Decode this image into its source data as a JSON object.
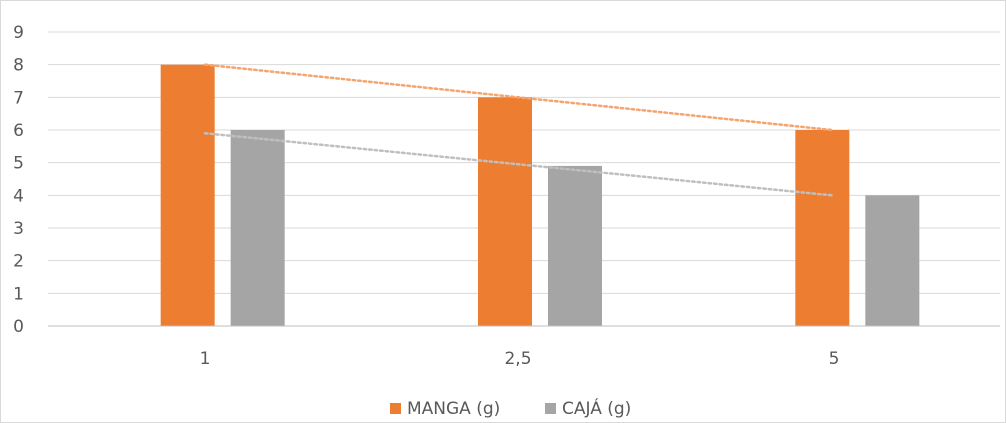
{
  "chart_data": {
    "type": "bar",
    "categories": [
      "1",
      "2,5",
      "5"
    ],
    "series": [
      {
        "name": "MANGA (g)",
        "values": [
          8,
          7,
          6
        ],
        "color": "#ED7D31"
      },
      {
        "name": "CAJÁ (g)",
        "values": [
          6,
          4.9,
          4
        ],
        "color": "#A5A5A5"
      }
    ],
    "trendlines": [
      {
        "series": "MANGA (g)",
        "style": "dotted",
        "start": 8,
        "end": 6
      },
      {
        "series": "CAJÁ (g)",
        "style": "dotted",
        "start": 5.9,
        "end": 4
      }
    ],
    "ylim": [
      0,
      9
    ],
    "yticks": [
      "0",
      "1",
      "2",
      "3",
      "4",
      "5",
      "6",
      "7",
      "8",
      "9"
    ],
    "grid": true,
    "legend_position": "bottom"
  }
}
